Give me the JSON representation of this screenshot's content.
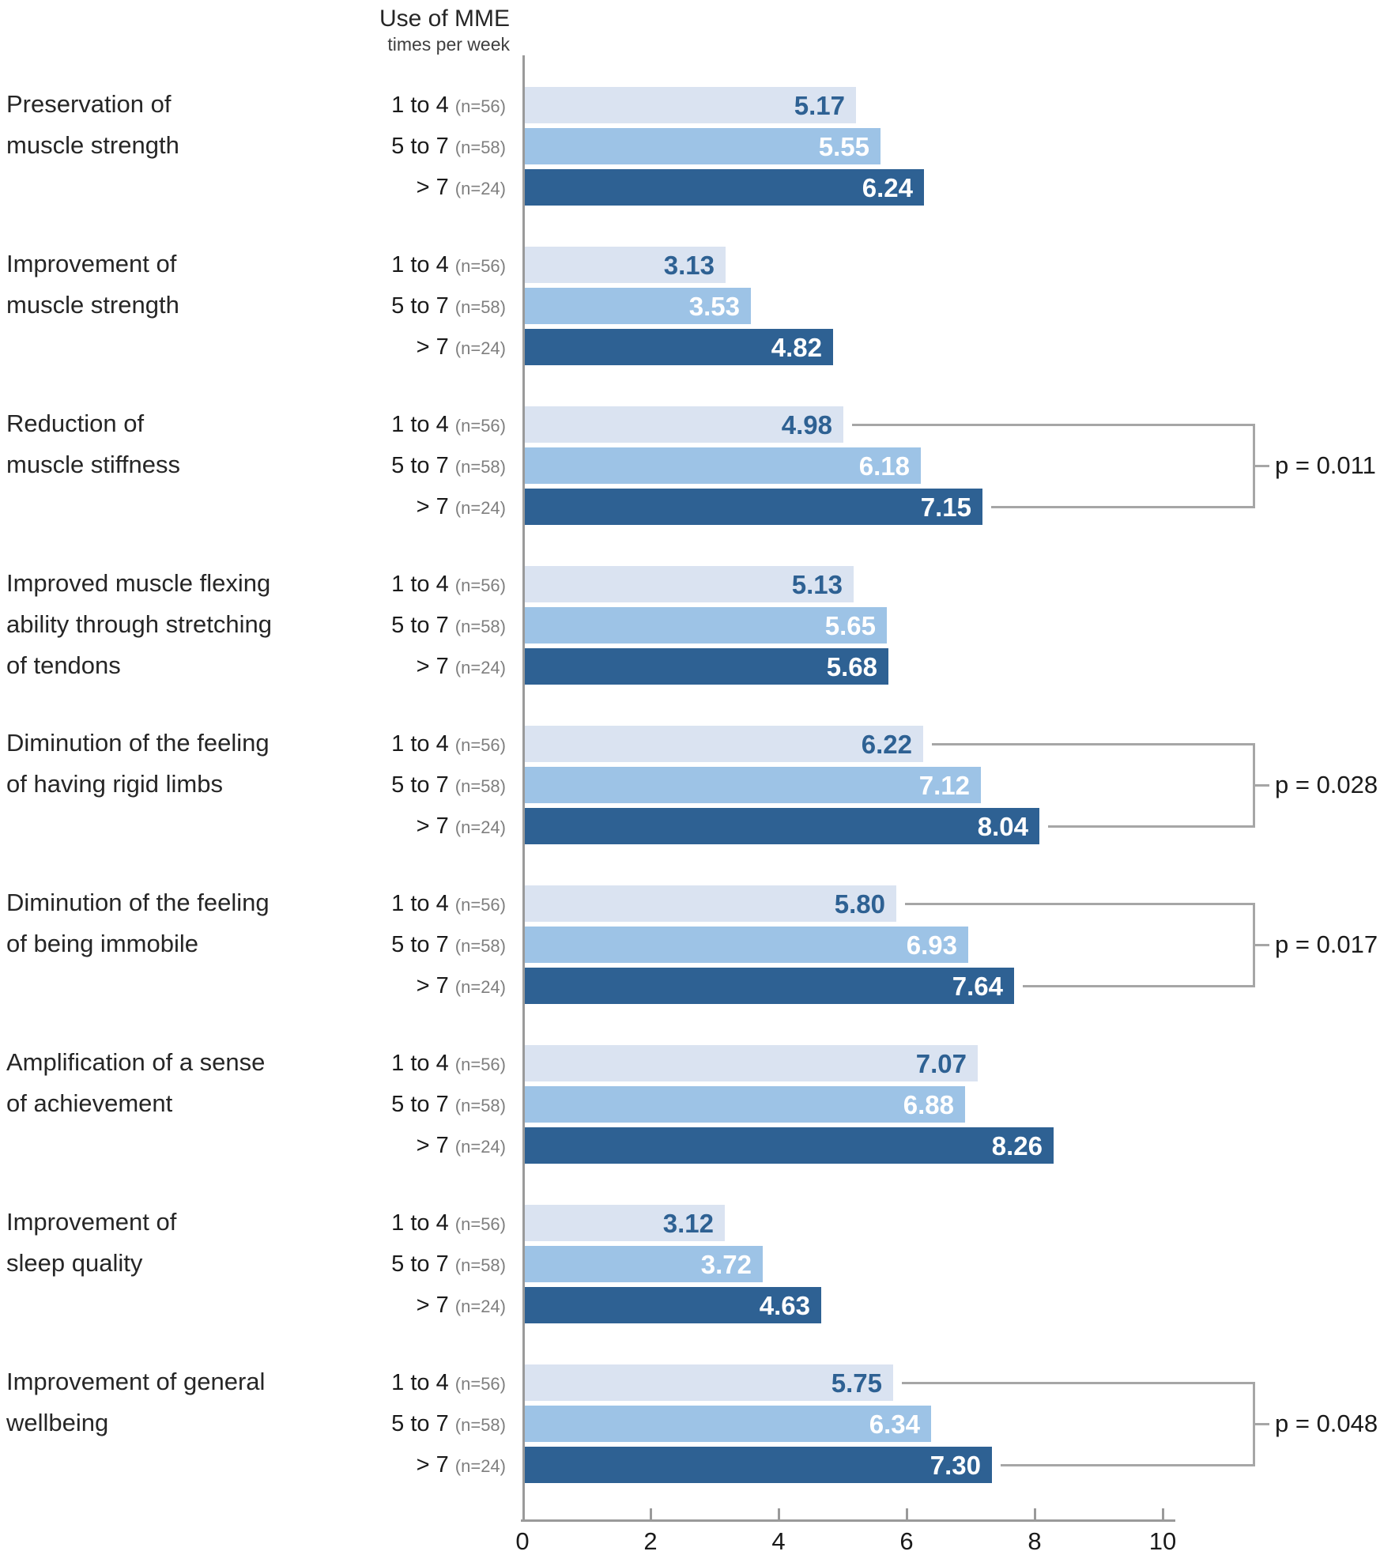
{
  "header": {
    "title": "Use of MME",
    "subtitle": "times per week"
  },
  "chart_data": {
    "type": "bar",
    "orientation": "horizontal",
    "title": "Use of MME times per week",
    "xlim": [
      0,
      11
    ],
    "x_ticks": [
      0,
      2,
      4,
      6,
      8,
      10
    ],
    "grid": false,
    "legend_position": "none",
    "row_labels": [
      {
        "label": "1 to 4",
        "n": "(n=56)"
      },
      {
        "label": "5 to 7",
        "n": "(n=58)"
      },
      {
        "label": "> 7",
        "n": "(n=24)"
      }
    ],
    "series_colors": [
      "#dae3f1",
      "#9dc3e6",
      "#2e6193"
    ],
    "value_text_colors": [
      "#2e6193",
      "#ffffff",
      "#ffffff"
    ],
    "bracket_color": "#a6a6a6",
    "axis_color": "#9a9a9a",
    "groups": [
      {
        "category_lines": [
          "Preservation of",
          "muscle strength"
        ],
        "values": [
          5.17,
          5.55,
          6.24
        ],
        "p_value": null
      },
      {
        "category_lines": [
          "Improvement of",
          "muscle strength"
        ],
        "values": [
          3.13,
          3.53,
          4.82
        ],
        "p_value": null
      },
      {
        "category_lines": [
          "Reduction of",
          "muscle stiffness"
        ],
        "values": [
          4.98,
          6.18,
          7.15
        ],
        "p_value": "p = 0.011"
      },
      {
        "category_lines": [
          "Improved muscle flexing",
          "ability through stretching",
          "of tendons"
        ],
        "values": [
          5.13,
          5.65,
          5.68
        ],
        "p_value": null
      },
      {
        "category_lines": [
          "Diminution of the feeling",
          "of having rigid limbs"
        ],
        "values": [
          6.22,
          7.12,
          8.04
        ],
        "p_value": "p = 0.028"
      },
      {
        "category_lines": [
          "Diminution of the feeling",
          "of being immobile"
        ],
        "values": [
          5.8,
          6.93,
          7.64
        ],
        "p_value": "p = 0.017"
      },
      {
        "category_lines": [
          "Amplification of a sense",
          "of achievement"
        ],
        "values": [
          7.07,
          6.88,
          8.26
        ],
        "p_value": null
      },
      {
        "category_lines": [
          "Improvement of",
          "sleep quality"
        ],
        "values": [
          3.12,
          3.72,
          4.63
        ],
        "p_value": null
      },
      {
        "category_lines": [
          "Improvement of general",
          "wellbeing"
        ],
        "values": [
          5.75,
          6.34,
          7.3
        ],
        "p_value": "p = 0.048"
      }
    ]
  }
}
